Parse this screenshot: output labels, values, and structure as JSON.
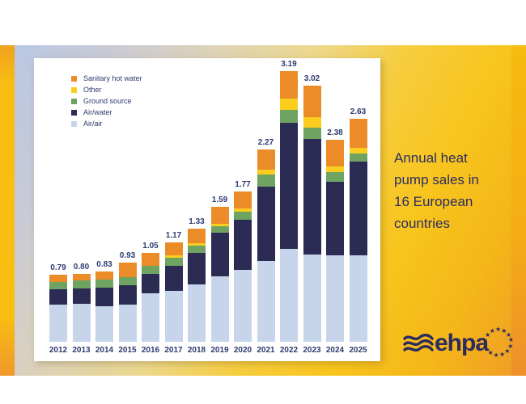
{
  "caption": {
    "text": "Annual heat pump sales in 16 European countries"
  },
  "logo": {
    "text": "ehpa"
  },
  "colors": {
    "navy": "#2b2b54",
    "air_air_blue": "#c7d5eb",
    "ground_green": "#6fa362",
    "other_yellow": "#facd1e",
    "sanitary_orange": "#ec8c28",
    "band_gold": "#f8c51d",
    "band_orange": "#ef9b28",
    "label_navy": "#2d3a6e"
  },
  "chart_data": {
    "type": "bar",
    "stacked": true,
    "title": "Annual heat pump sales in 16 European countries",
    "xlabel": "",
    "ylabel": "",
    "y_axis_visible": false,
    "grid": false,
    "legend_position": "top-left",
    "categories": [
      "2012",
      "2013",
      "2014",
      "2015",
      "2016",
      "2017",
      "2018",
      "2019",
      "2020",
      "2021",
      "2022",
      "2023",
      "2024",
      "2025"
    ],
    "totals": [
      "0.79",
      "0.80",
      "0.83",
      "0.93",
      "1.05",
      "1.17",
      "1.33",
      "1.59",
      "1.77",
      "2.27",
      "3.19",
      "3.02",
      "2.38",
      "2.63"
    ],
    "series": [
      {
        "name": "Air/air",
        "color": "#c7d5eb",
        "values": [
          0.44,
          0.45,
          0.42,
          0.44,
          0.57,
          0.6,
          0.68,
          0.77,
          0.85,
          0.95,
          1.1,
          1.03,
          1.02,
          1.02
        ]
      },
      {
        "name": "Air/water",
        "color": "#2b2b54",
        "values": [
          0.18,
          0.18,
          0.22,
          0.23,
          0.23,
          0.3,
          0.37,
          0.52,
          0.59,
          0.88,
          1.48,
          1.36,
          0.87,
          1.1
        ]
      },
      {
        "name": "Ground source",
        "color": "#6fa362",
        "values": [
          0.09,
          0.09,
          0.09,
          0.09,
          0.1,
          0.09,
          0.08,
          0.07,
          0.09,
          0.14,
          0.15,
          0.13,
          0.11,
          0.1
        ]
      },
      {
        "name": "Other",
        "color": "#facd1e",
        "values": [
          0.0,
          0.0,
          0.0,
          0.0,
          0.0,
          0.03,
          0.03,
          0.03,
          0.04,
          0.06,
          0.14,
          0.13,
          0.07,
          0.07
        ]
      },
      {
        "name": "Sanitary hot water",
        "color": "#ec8c28",
        "values": [
          0.08,
          0.08,
          0.1,
          0.17,
          0.15,
          0.15,
          0.17,
          0.2,
          0.2,
          0.24,
          0.32,
          0.37,
          0.31,
          0.34
        ]
      }
    ],
    "legend_order": [
      "Sanitary hot water",
      "Other",
      "Ground source",
      "Air/water",
      "Air/air"
    ]
  }
}
